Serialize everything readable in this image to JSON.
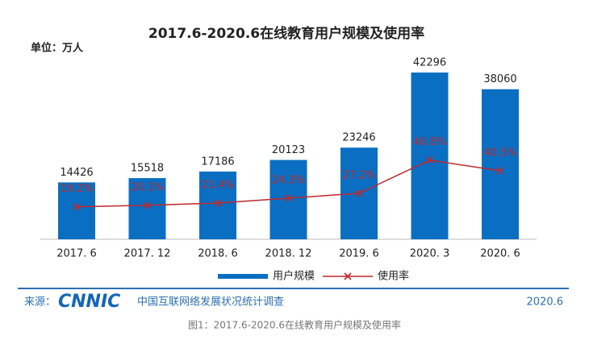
{
  "chart_data": {
    "type": "bar",
    "title": "2017.6-2020.6在线教育用户规模及使用率",
    "unit_label": "单位：万人",
    "categories": [
      "2017. 6",
      "2017. 12",
      "2018. 6",
      "2018. 12",
      "2019. 6",
      "2020. 3",
      "2020. 6"
    ],
    "series": [
      {
        "name": "用户规模",
        "type": "bar",
        "color": "#0a6fc2",
        "values": [
          14426,
          15518,
          17186,
          20123,
          23246,
          42296,
          38060
        ]
      },
      {
        "name": "使用率",
        "type": "line",
        "axis": "y2",
        "color": "#c0282d",
        "values": [
          19.2,
          20.1,
          21.4,
          24.3,
          27.2,
          46.8,
          40.5
        ],
        "value_labels": [
          "19.2%",
          "20.1%",
          "21.4%",
          "24.3%",
          "27.2%",
          "46.8%",
          "40.5%"
        ]
      }
    ]
  },
  "footer": {
    "source_label": "来源：",
    "logo": "CNNIC",
    "source": "中国互联网络发展状况统计调查",
    "date": "2020.6"
  },
  "caption": "图1：2017.6-2020.6在线教育用户规模及使用率"
}
